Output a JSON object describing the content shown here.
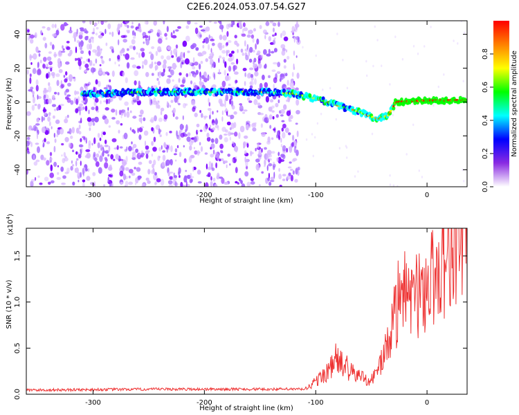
{
  "title": "C2E6.2024.053.07.54.G27",
  "chart_data": [
    {
      "type": "heatmap",
      "xlabel": "Height of straight line (km)",
      "ylabel": "Frequency (Hz)",
      "xlim": [
        -360,
        36
      ],
      "ylim": [
        -50,
        48
      ],
      "xticks": [
        -300,
        -200,
        -100,
        0
      ],
      "yticks": [
        -40,
        -20,
        0,
        20,
        40
      ],
      "colorbar": {
        "label": "Normalized spectral amplitude",
        "range": [
          0,
          1
        ],
        "ticks": [
          "0.0",
          "0.2",
          "0.4",
          "0.6",
          "0.8"
        ],
        "colormap": [
          "#ffffff",
          "#8a2be2",
          "#0000ff",
          "#00ffff",
          "#00ff00",
          "#ffff00",
          "#ff8000",
          "#ff0000"
        ]
      },
      "signal_track": [
        {
          "x": -310,
          "y": 5
        },
        {
          "x": -250,
          "y": 6
        },
        {
          "x": -200,
          "y": 6
        },
        {
          "x": -150,
          "y": 6
        },
        {
          "x": -120,
          "y": 5
        },
        {
          "x": -100,
          "y": 2
        },
        {
          "x": -80,
          "y": -2
        },
        {
          "x": -60,
          "y": -6
        },
        {
          "x": -45,
          "y": -10
        },
        {
          "x": -35,
          "y": -8
        },
        {
          "x": -28,
          "y": 0
        },
        {
          "x": 0,
          "y": 1
        },
        {
          "x": 36,
          "y": 1
        }
      ]
    },
    {
      "type": "line",
      "xlabel": "Height of straight line (km)",
      "ylabel": "SNR (10 * v/v)",
      "scale_note": "(x10",
      "scale_exp": "4",
      "scale_close": ")",
      "xlim": [
        -360,
        36
      ],
      "ylim": [
        0,
        1.8
      ],
      "xticks": [
        -300,
        -200,
        -100,
        0
      ],
      "yticks": [
        "0.0",
        "0.5",
        "1.0",
        "1.5"
      ],
      "color": "#ee3333",
      "envelope": [
        {
          "x": -360,
          "y": 0.03
        },
        {
          "x": -240,
          "y": 0.04
        },
        {
          "x": -110,
          "y": 0.04
        },
        {
          "x": -95,
          "y": 0.15
        },
        {
          "x": -80,
          "y": 0.3
        },
        {
          "x": -70,
          "y": 0.2
        },
        {
          "x": -50,
          "y": 0.12
        },
        {
          "x": -38,
          "y": 0.35
        },
        {
          "x": -30,
          "y": 0.7
        },
        {
          "x": -20,
          "y": 0.8
        },
        {
          "x": -5,
          "y": 0.9
        },
        {
          "x": 10,
          "y": 1.1
        },
        {
          "x": 20,
          "y": 1.3
        },
        {
          "x": 36,
          "y": 1.45
        }
      ],
      "peaks": [
        {
          "x": -82,
          "y": 0.55
        },
        {
          "x": -72,
          "y": 0.42
        },
        {
          "x": -35,
          "y": 0.55
        },
        {
          "x": -26,
          "y": 1.45
        },
        {
          "x": -20,
          "y": 1.55
        },
        {
          "x": -12,
          "y": 1.3
        },
        {
          "x": 5,
          "y": 1.78
        },
        {
          "x": 18,
          "y": 1.48
        },
        {
          "x": 30,
          "y": 1.52
        }
      ]
    }
  ]
}
